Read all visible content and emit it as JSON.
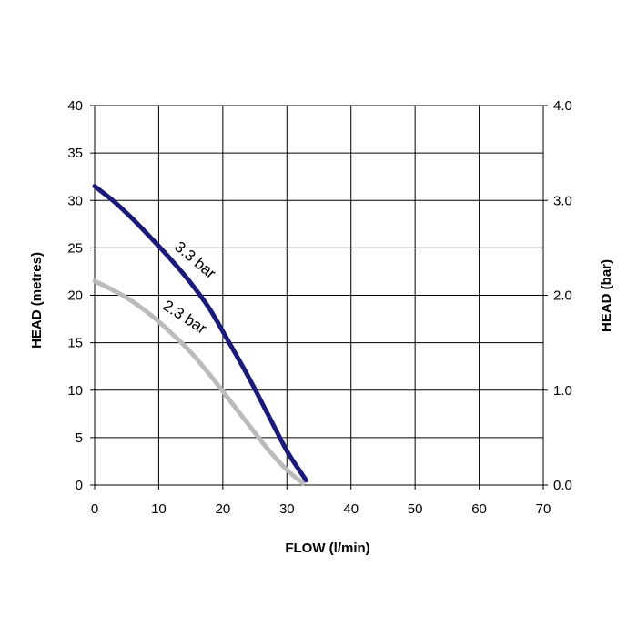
{
  "chart_data": {
    "type": "line",
    "title": "",
    "xlabel": "FLOW (l/min)",
    "ylabel": "HEAD (metres)",
    "y2label": "HEAD (bar)",
    "xlim": [
      0,
      70
    ],
    "ylim": [
      0,
      40
    ],
    "y2lim": [
      0.0,
      4.0
    ],
    "x_ticks": [
      "0",
      "10",
      "20",
      "30",
      "40",
      "50",
      "60",
      "70"
    ],
    "y_ticks": [
      "0",
      "5",
      "10",
      "15",
      "20",
      "25",
      "30",
      "35",
      "40"
    ],
    "y2_ticks": [
      "0.0",
      "1.0",
      "2.0",
      "3.0",
      "4.0"
    ],
    "grid": true,
    "series": [
      {
        "name": "3.3 bar",
        "color": "#1a1a7a",
        "x": [
          0,
          3,
          6,
          9,
          12,
          15,
          18,
          21,
          24,
          27,
          30,
          32,
          33
        ],
        "y": [
          31.5,
          29.9,
          28.0,
          25.9,
          23.7,
          21.3,
          18.5,
          15.0,
          11.4,
          7.5,
          3.6,
          1.5,
          0.5
        ]
      },
      {
        "name": "2.3 bar",
        "color": "#bbbbbb",
        "x": [
          0,
          3,
          6,
          9,
          12,
          15,
          18,
          21,
          24,
          27,
          30,
          32.5
        ],
        "y": [
          21.5,
          20.5,
          19.3,
          17.8,
          16.0,
          14.0,
          11.6,
          9.0,
          6.4,
          3.8,
          1.6,
          0.2
        ]
      }
    ],
    "annotations": [
      "3.3 bar",
      "2.3 bar"
    ]
  }
}
